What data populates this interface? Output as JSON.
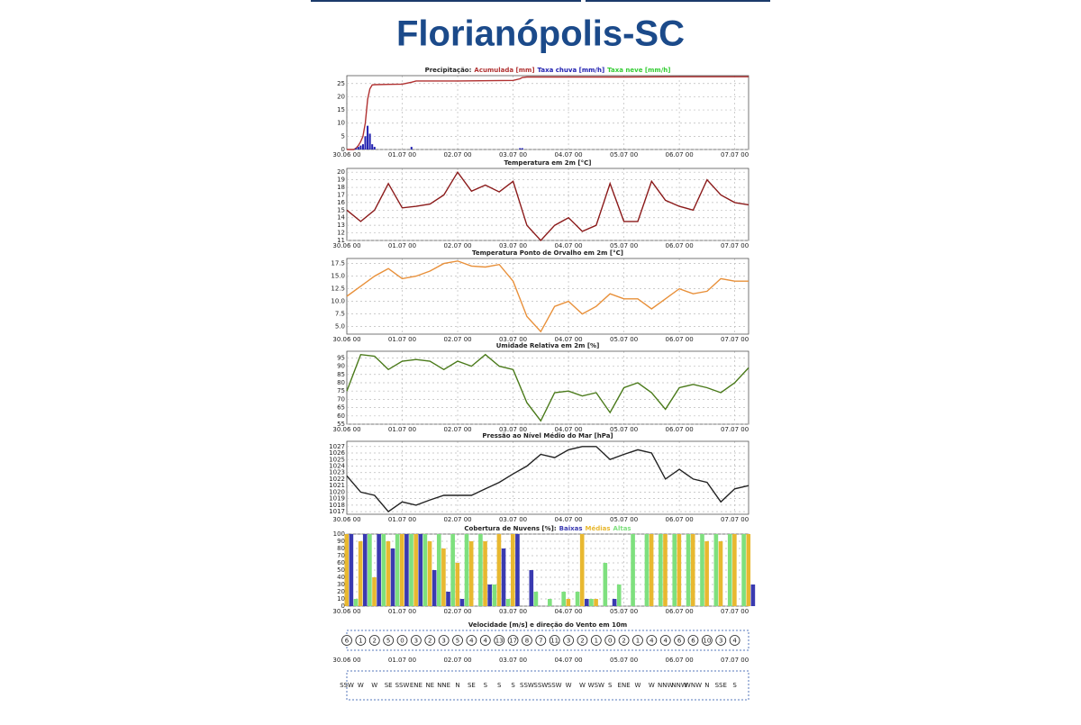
{
  "header": {
    "title": "Florianópolis-SC"
  },
  "chart_data": [
    {
      "type": "combo",
      "title": "Precipitação:",
      "x": [
        0,
        3,
        4,
        5,
        6,
        7,
        8,
        9,
        10,
        11,
        12,
        18,
        24,
        28,
        30,
        48,
        72,
        75,
        76,
        78,
        96,
        120,
        144,
        168,
        174
      ],
      "series": [
        {
          "name": "Acumulada [mm]",
          "color": "#b03030",
          "kind": "line",
          "values": [
            0,
            0,
            0.5,
            1.5,
            3,
            5,
            10,
            19,
            23,
            24.5,
            24.6,
            24.7,
            24.8,
            25.5,
            26,
            26,
            26.2,
            26.8,
            27.3,
            27.5,
            27.5,
            27.5,
            27.6,
            27.6,
            27.6
          ]
        },
        {
          "name": "Taxa chuva [mm/h]",
          "color": "#2020b0",
          "kind": "bar",
          "values": [
            0,
            0,
            0.5,
            1,
            1.5,
            2,
            5,
            9,
            6,
            2,
            1,
            0,
            0,
            1,
            0,
            0,
            0,
            0.5,
            0.5,
            0,
            0,
            0,
            0,
            0,
            0
          ]
        }
      ],
      "extra_legend": {
        "name": "Taxa neve [mm/h]",
        "color": "#33cc33"
      },
      "xlim": [
        0,
        174
      ],
      "xticks": [
        {
          "value": 0,
          "label": "30.06 00"
        },
        {
          "value": 24,
          "label": "01.07 00"
        },
        {
          "value": 48,
          "label": "02.07 00"
        },
        {
          "value": 72,
          "label": "03.07 00"
        },
        {
          "value": 96,
          "label": "04.07 00"
        },
        {
          "value": 120,
          "label": "05.07 00"
        },
        {
          "value": 144,
          "label": "06.07 00"
        },
        {
          "value": 168,
          "label": "07.07 00"
        }
      ],
      "ylim": [
        0,
        28
      ],
      "yticks": [
        0,
        5,
        10,
        15,
        20,
        25
      ],
      "grid": true
    },
    {
      "type": "line",
      "title": "Temperatura em 2m [°C]",
      "x": [
        0,
        6,
        12,
        18,
        24,
        30,
        36,
        42,
        48,
        54,
        60,
        66,
        72,
        78,
        84,
        90,
        96,
        102,
        108,
        114,
        120,
        126,
        132,
        138,
        144,
        150,
        156,
        162,
        168,
        174
      ],
      "series": [
        {
          "color": "#8b1a1a",
          "values": [
            15,
            13.5,
            15,
            18.5,
            15.3,
            15.5,
            15.8,
            17,
            20,
            17.5,
            18.3,
            17.4,
            18.8,
            13,
            11,
            13,
            14,
            12.2,
            13,
            18.5,
            13.5,
            13.5,
            18.8,
            16.3,
            15.5,
            15,
            19,
            17,
            16,
            15.7
          ]
        }
      ],
      "xlim": [
        0,
        174
      ],
      "xticks": [
        {
          "value": 0,
          "label": "30.06 00"
        },
        {
          "value": 24,
          "label": "01.07 00"
        },
        {
          "value": 48,
          "label": "02.07 00"
        },
        {
          "value": 72,
          "label": "03.07 00"
        },
        {
          "value": 96,
          "label": "04.07 00"
        },
        {
          "value": 120,
          "label": "05.07 00"
        },
        {
          "value": 144,
          "label": "06.07 00"
        },
        {
          "value": 168,
          "label": "07.07 00"
        }
      ],
      "ylim": [
        11,
        20.5
      ],
      "yticks": [
        11,
        12,
        13,
        14,
        15,
        16,
        17,
        18,
        19,
        20
      ],
      "grid": true
    },
    {
      "type": "line",
      "title": "Temperatura Ponto de Orvalho em 2m [°C]",
      "x": [
        0,
        6,
        12,
        18,
        24,
        30,
        36,
        42,
        48,
        54,
        60,
        66,
        72,
        78,
        84,
        90,
        96,
        102,
        108,
        114,
        120,
        126,
        132,
        138,
        144,
        150,
        156,
        162,
        168,
        174
      ],
      "series": [
        {
          "color": "#e8903a",
          "values": [
            11,
            13,
            15,
            16.5,
            14.5,
            15,
            16,
            17.5,
            18,
            17,
            16.8,
            17.3,
            14,
            7,
            4,
            9,
            10,
            7.5,
            9,
            11.5,
            10.5,
            10.5,
            8.5,
            10.5,
            12.5,
            11.5,
            12,
            14.5,
            14,
            14
          ]
        }
      ],
      "xlim": [
        0,
        174
      ],
      "xticks": [
        {
          "value": 0,
          "label": "30.06 00"
        },
        {
          "value": 24,
          "label": "01.07 00"
        },
        {
          "value": 48,
          "label": "02.07 00"
        },
        {
          "value": 72,
          "label": "03.07 00"
        },
        {
          "value": 96,
          "label": "04.07 00"
        },
        {
          "value": 120,
          "label": "05.07 00"
        },
        {
          "value": 144,
          "label": "06.07 00"
        },
        {
          "value": 168,
          "label": "07.07 00"
        }
      ],
      "ylim": [
        3.5,
        18.5
      ],
      "yticks": [
        {
          "value": 5,
          "label": "5.0"
        },
        7.5,
        {
          "value": 10,
          "label": "10.0"
        },
        12.5,
        {
          "value": 15,
          "label": "15.0"
        },
        17.5
      ],
      "grid": true
    },
    {
      "type": "line",
      "title": "Umidade Relativa em 2m [%]",
      "x": [
        0,
        6,
        12,
        18,
        24,
        30,
        36,
        42,
        48,
        54,
        60,
        66,
        72,
        78,
        84,
        90,
        96,
        102,
        108,
        114,
        120,
        126,
        132,
        138,
        144,
        150,
        156,
        162,
        168,
        174
      ],
      "series": [
        {
          "color": "#4a7a1a",
          "values": [
            75,
            97,
            96,
            88,
            93,
            94,
            93,
            88,
            93,
            90,
            97,
            90,
            88,
            68,
            57,
            74,
            75,
            72,
            74,
            62,
            77,
            80,
            74,
            64,
            77,
            79,
            77,
            74,
            80,
            89
          ]
        }
      ],
      "xlim": [
        0,
        174
      ],
      "xticks": [
        {
          "value": 0,
          "label": "30.06 00"
        },
        {
          "value": 24,
          "label": "01.07 00"
        },
        {
          "value": 48,
          "label": "02.07 00"
        },
        {
          "value": 72,
          "label": "03.07 00"
        },
        {
          "value": 96,
          "label": "04.07 00"
        },
        {
          "value": 120,
          "label": "05.07 00"
        },
        {
          "value": 144,
          "label": "06.07 00"
        },
        {
          "value": 168,
          "label": "07.07 00"
        }
      ],
      "ylim": [
        55,
        99
      ],
      "yticks": [
        55,
        60,
        65,
        70,
        75,
        80,
        85,
        90,
        95
      ],
      "grid": true
    },
    {
      "type": "line",
      "title": "Pressão ao Nível Médio do Mar [hPa]",
      "x": [
        0,
        6,
        12,
        18,
        24,
        30,
        36,
        42,
        48,
        54,
        60,
        66,
        72,
        78,
        84,
        90,
        96,
        102,
        108,
        114,
        120,
        126,
        132,
        138,
        144,
        150,
        156,
        162,
        168,
        174
      ],
      "series": [
        {
          "color": "#222222",
          "values": [
            1022.5,
            1020,
            1019.5,
            1017,
            1018.5,
            1018,
            1018.8,
            1019.5,
            1019.5,
            1019.5,
            1020.5,
            1021.5,
            1022.8,
            1024,
            1025.8,
            1025.3,
            1026.5,
            1027,
            1027,
            1025,
            1025.8,
            1026.5,
            1026,
            1022,
            1023.5,
            1022,
            1021.5,
            1018.5,
            1020.5,
            1021
          ]
        }
      ],
      "xlim": [
        0,
        174
      ],
      "xticks": [
        {
          "value": 0,
          "label": "30.06 00"
        },
        {
          "value": 24,
          "label": "01.07 00"
        },
        {
          "value": 48,
          "label": "02.07 00"
        },
        {
          "value": 72,
          "label": "03.07 00"
        },
        {
          "value": 96,
          "label": "04.07 00"
        },
        {
          "value": 120,
          "label": "05.07 00"
        },
        {
          "value": 144,
          "label": "06.07 00"
        },
        {
          "value": 168,
          "label": "07.07 00"
        }
      ],
      "ylim": [
        1016.6,
        1027.8
      ],
      "yticks": [
        1017,
        1018,
        1019,
        1020,
        1021,
        1022,
        1023,
        1024,
        1025,
        1026,
        1027
      ],
      "grid": true
    },
    {
      "type": "bar",
      "title": "Cobertura de Nuvens [%]:",
      "x": [
        0,
        6,
        12,
        18,
        24,
        30,
        36,
        42,
        48,
        54,
        60,
        66,
        72,
        78,
        84,
        90,
        96,
        102,
        108,
        114,
        120,
        126,
        132,
        138,
        144,
        150,
        156,
        162,
        168,
        174
      ],
      "series": [
        {
          "name": "Baixas",
          "color": "#3a3ab0",
          "values": [
            100,
            100,
            100,
            80,
            100,
            100,
            50,
            20,
            10,
            0,
            30,
            80,
            100,
            50,
            0,
            0,
            0,
            10,
            0,
            10,
            0,
            0,
            0,
            0,
            0,
            0,
            0,
            0,
            0,
            30
          ]
        },
        {
          "name": "Médias",
          "color": "#e8b830",
          "values": [
            100,
            90,
            40,
            90,
            100,
            100,
            90,
            80,
            60,
            90,
            90,
            100,
            100,
            0,
            0,
            0,
            10,
            100,
            10,
            0,
            0,
            0,
            100,
            100,
            100,
            100,
            90,
            90,
            100,
            100
          ]
        },
        {
          "name": "Altas",
          "color": "#7ee07e",
          "values": [
            0,
            10,
            100,
            100,
            100,
            100,
            100,
            100,
            100,
            100,
            100,
            30,
            10,
            0,
            20,
            10,
            20,
            20,
            10,
            60,
            30,
            100,
            100,
            100,
            100,
            100,
            100,
            100,
            100,
            100
          ]
        }
      ],
      "xlim": [
        0,
        174
      ],
      "xticks": [
        {
          "value": 0,
          "label": "30.06 00"
        },
        {
          "value": 24,
          "label": "01.07 00"
        },
        {
          "value": 48,
          "label": "02.07 00"
        },
        {
          "value": 72,
          "label": "03.07 00"
        },
        {
          "value": 96,
          "label": "04.07 00"
        },
        {
          "value": 120,
          "label": "05.07 00"
        },
        {
          "value": 144,
          "label": "06.07 00"
        },
        {
          "value": 168,
          "label": "07.07 00"
        }
      ],
      "ylim": [
        0,
        100
      ],
      "yticks": [
        0,
        10,
        20,
        30,
        40,
        50,
        60,
        70,
        80,
        90,
        100
      ],
      "grid": true
    },
    {
      "type": "wind",
      "title": "Velocidade [m/s] e direção do Vento em 10m",
      "x": [
        0,
        6,
        12,
        18,
        24,
        30,
        36,
        42,
        48,
        54,
        60,
        66,
        72,
        78,
        84,
        90,
        96,
        102,
        108,
        114,
        120,
        126,
        132,
        138,
        144,
        150,
        156,
        162,
        168
      ],
      "speed": [
        6,
        1,
        2,
        5,
        0,
        3,
        2,
        3,
        5,
        4,
        4,
        13,
        17,
        8,
        7,
        11,
        3,
        2,
        1,
        0,
        2,
        1,
        4,
        4,
        6,
        6,
        10,
        3,
        4
      ],
      "direction": [
        "SSW",
        "W",
        "W",
        "SE",
        "SSW",
        "ENE",
        "NE",
        "NNE",
        "N",
        "SE",
        "S",
        "S",
        "S",
        "SSW",
        "SSW",
        "SSW",
        "W",
        "W",
        "WSW",
        "S",
        "ENE",
        "W",
        "W",
        "NNW",
        "NNW",
        "WNW",
        "N",
        "SSE",
        "S"
      ],
      "xlim": [
        0,
        174
      ],
      "xticks": [
        {
          "value": 0,
          "label": "30.06 00"
        },
        {
          "value": 24,
          "label": "01.07 00"
        },
        {
          "value": 48,
          "label": "02.07 00"
        },
        {
          "value": 72,
          "label": "03.07 00"
        },
        {
          "value": 96,
          "label": "04.07 00"
        },
        {
          "value": 120,
          "label": "05.07 00"
        },
        {
          "value": 144,
          "label": "06.07 00"
        },
        {
          "value": 168,
          "label": "07.07 00"
        }
      ]
    }
  ]
}
